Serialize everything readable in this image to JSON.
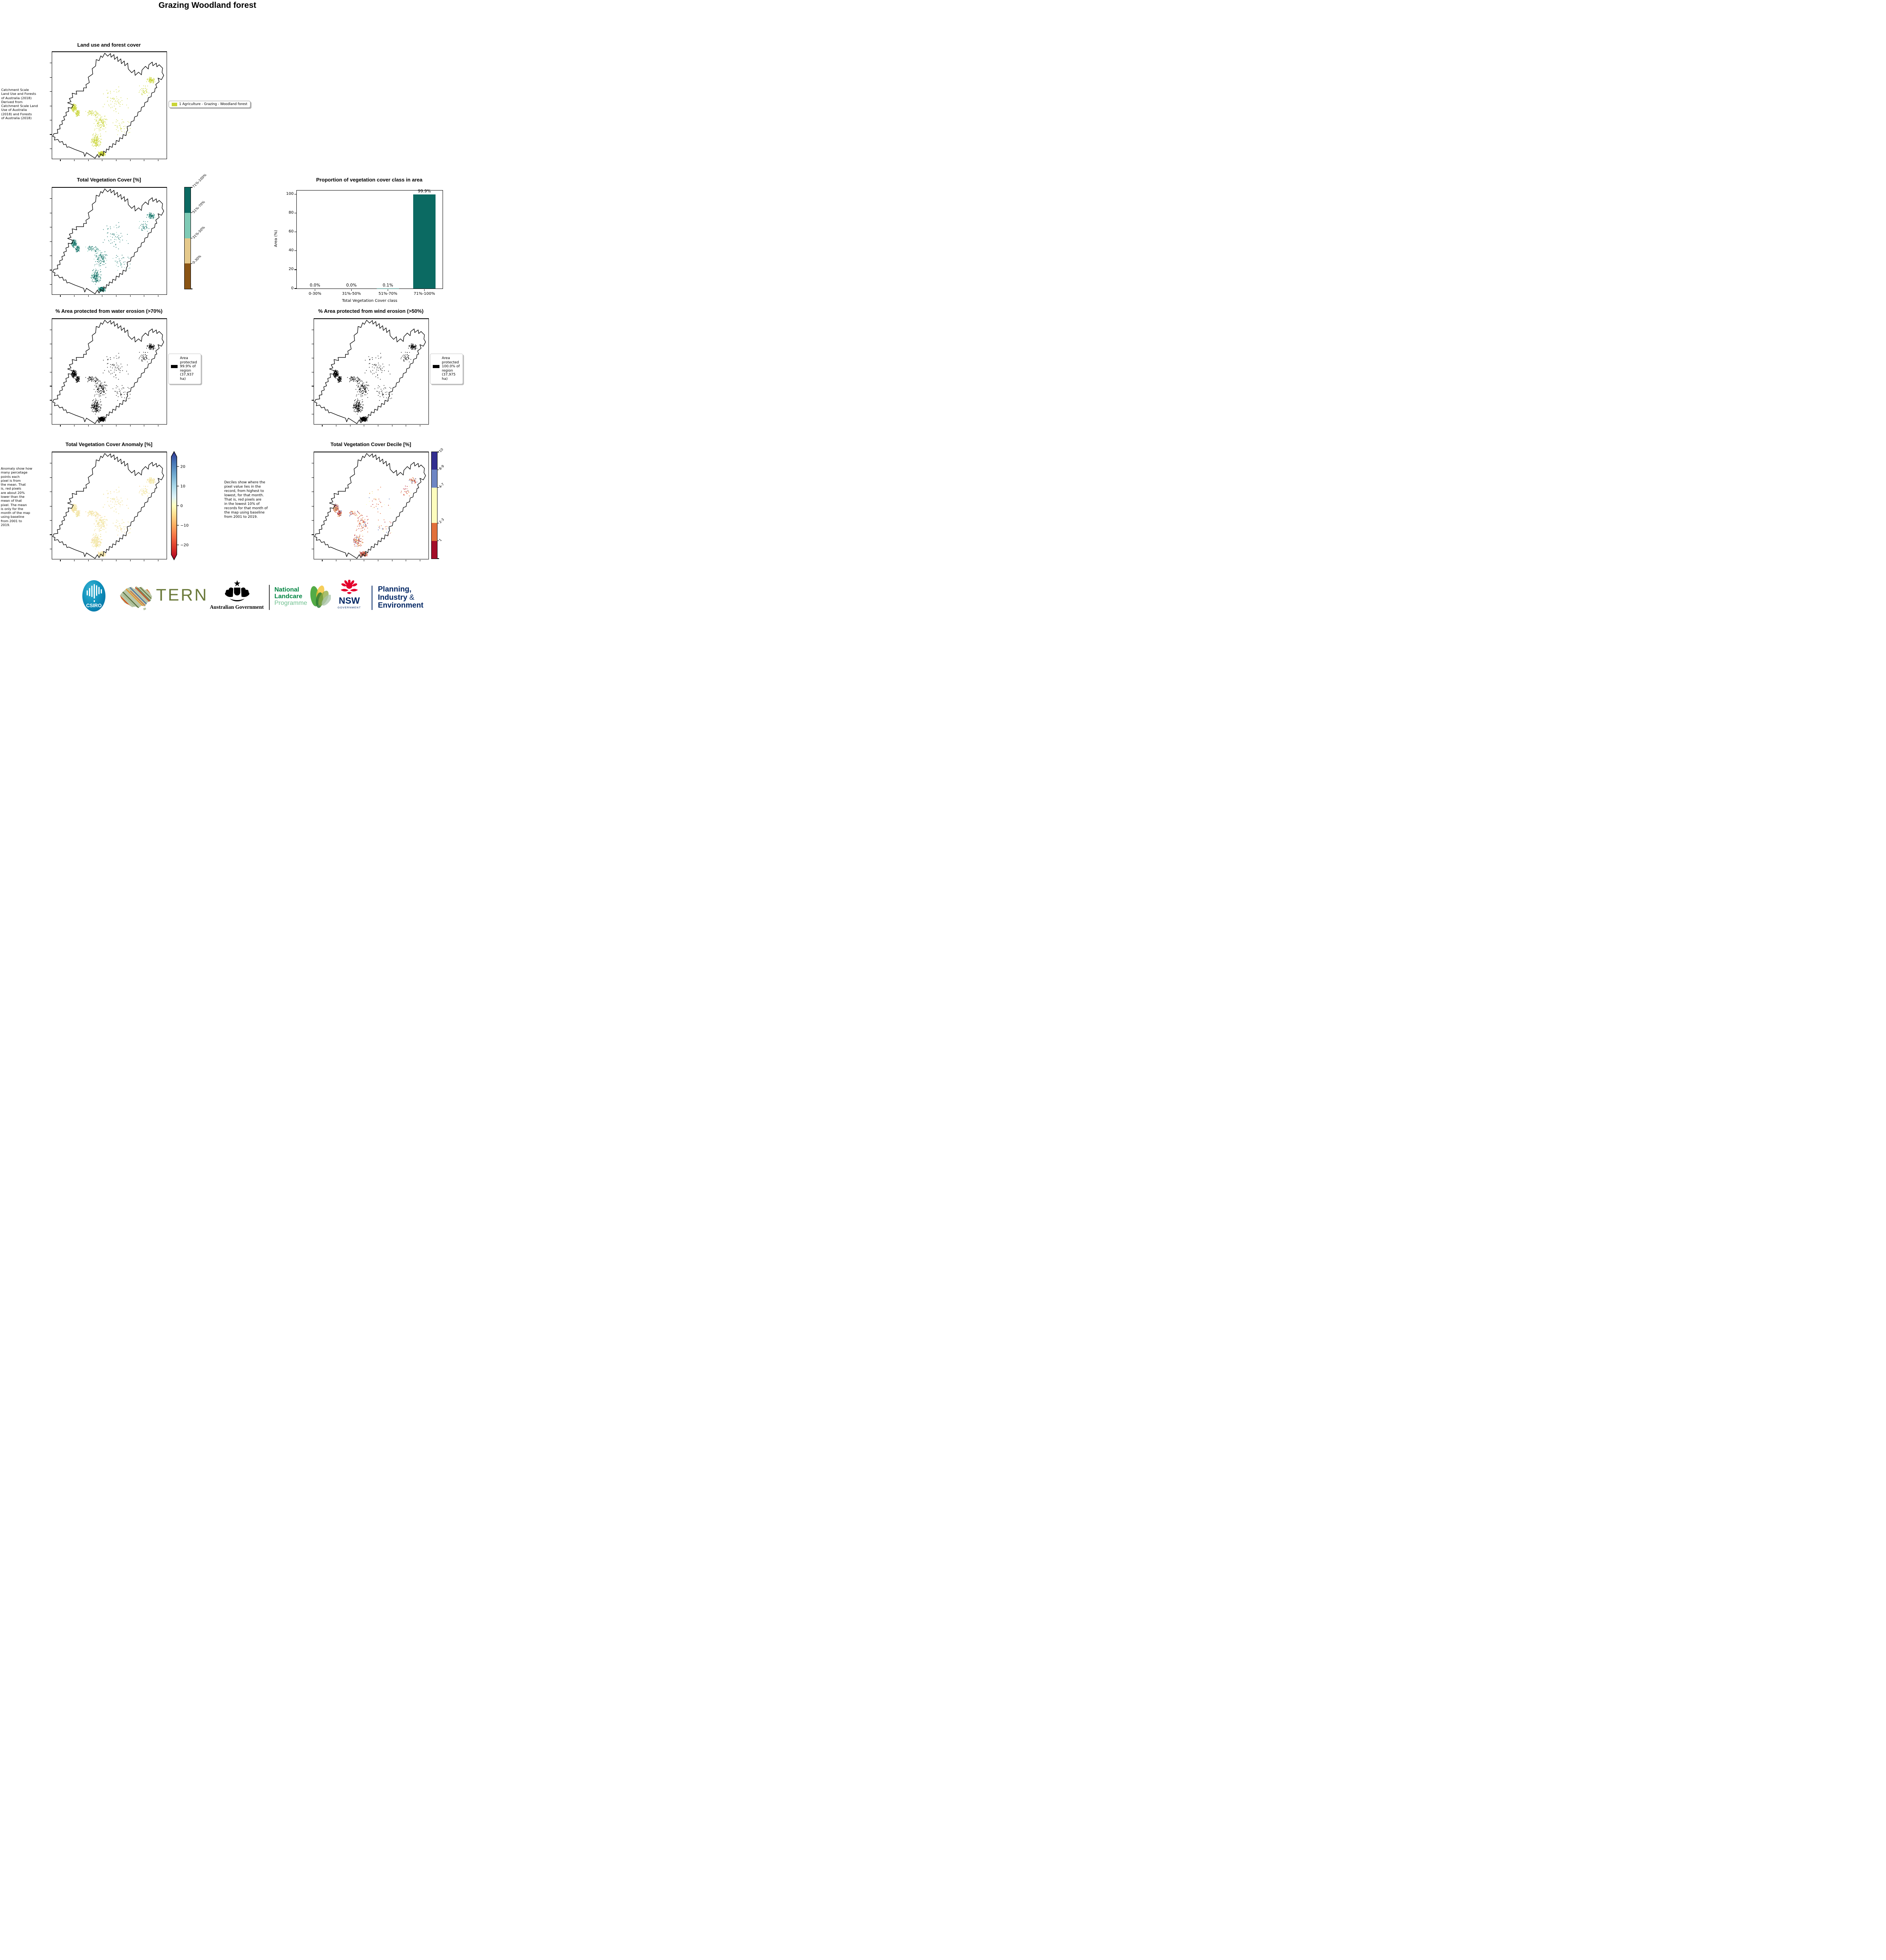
{
  "page": {
    "title": "Grazing Woodland forest"
  },
  "panels": {
    "land_use": {
      "title": "Land use and forest cover",
      "side_text": " Catchment Scale\nLand Use and Forests\nof Australia (2018)\nDerived from\nCatchment Scale Land\nUse of Australia\n(2018) and Forests\nof Australia (2018)",
      "legend_label": "1 Agriculture - Grazing - Woodland forest",
      "legend_color": "#c9d437",
      "pixel_colors": [
        "#c9d437",
        "#c9d437",
        "#c9d437",
        "#d3dc55"
      ]
    },
    "tvc": {
      "title": "Total Vegetation Cover [%]",
      "colorbar_classes": [
        {
          "label": "71%-100%",
          "color": "#0b6a62",
          "h": 1
        },
        {
          "label": "51%-70%",
          "color": "#7fcbb6",
          "h": 1
        },
        {
          "label": "31%-50%",
          "color": "#e5c98b",
          "h": 1
        },
        {
          "label": "0-30%",
          "color": "#8a5414",
          "h": 1
        }
      ],
      "pixel_colors": [
        "#0b6a62",
        "#0b6a62",
        "#0b6a62",
        "#7fcbb6"
      ]
    },
    "proportion": {
      "title": "Proportion of vegetation cover class in area"
    },
    "water": {
      "title": "% Area protected from water erosion (>70%)",
      "legend_text": "Area\nprotected\n99.9% of\nregion\n(37,937\nha)",
      "legend_color": "#000000",
      "pixel_colors": [
        "#000000"
      ]
    },
    "wind": {
      "title": "% Area protected from wind erosion (>50%)",
      "legend_text": "Area\nprotected\n100.0% of\nregion\n(37,975\nha)",
      "legend_color": "#000000",
      "pixel_colors": [
        "#000000"
      ]
    },
    "anomaly": {
      "title": "Total Vegetation Cover Anomaly [%]",
      "side_text": "Anomaly show how\nmany percetage\npoints each\npixel is from\nthe mean. That\nis, red pixels\nare about 20%\nlower than the\nmean of that\npixel. The mean\nis only for the\nmonth of the map\nusing baseline\nfrom 2001 to\n2019.",
      "colorbar_ticks": [
        "20",
        "10",
        "0",
        "−10",
        "−20"
      ],
      "pixel_colors": [
        "#f7f2c4",
        "#f1e8a6",
        "#ece08e",
        "#f4e9b0",
        "#f6d9a2"
      ]
    },
    "decile": {
      "title": "Total Vegetation Cover Decile [%]",
      "info_text": "Deciles show where the\npixel value lies in the\nrecord, from highest to\nlowest, for that month.\nThat is, red pixels are\nin the lowest 10% of\nrecords for that month of\nthe map using baseline\nfrom 2001 to 2019.",
      "colorbar_classes": [
        {
          "label": "10",
          "color": "#322e90",
          "h": 1
        },
        {
          "label": "8-9",
          "color": "#6e86c4",
          "h": 1
        },
        {
          "label": "4-7",
          "color": "#fdfdbe",
          "h": 2
        },
        {
          "label": "2-3",
          "color": "#e2703a",
          "h": 1
        },
        {
          "label": "1",
          "color": "#a30e28",
          "h": 1
        }
      ],
      "pixel_colors": [
        "#b5182b",
        "#e2703a",
        "#e2703a",
        "#fdfcb0",
        "#5a74b8",
        "#c94a2e"
      ]
    }
  },
  "chart_data": {
    "type": "bar",
    "title": "Proportion of vegetation cover class in area",
    "categories": [
      "0-30%",
      "31%-50%",
      "51%-70%",
      "71%-100%"
    ],
    "values": [
      0.0,
      0.0,
      0.1,
      99.9
    ],
    "bar_labels": [
      "0.0%",
      "0.0%",
      "0.1%",
      "99.9%"
    ],
    "xlabel": "Total Vegetation Cover class",
    "ylabel": "Area (%)",
    "ylim": [
      0,
      104
    ],
    "yticks": [
      0,
      20,
      40,
      60,
      80,
      100
    ],
    "bar_color": "#0b6a62",
    "grid": false,
    "legend": "none"
  },
  "logos": {
    "csiro_label": "CSIRO",
    "tern_label": "TERN",
    "aus_gov_label": "Australian Government",
    "landcare_line1": "National",
    "landcare_line2": "Landcare",
    "landcare_line3": "Programme",
    "nsw_label": "NSW",
    "nsw_sub": "GOVERNMENT",
    "dept_line1": "Planning,",
    "dept_line2": "Industry",
    "dept_amp": "&",
    "dept_line3": "Environment"
  }
}
